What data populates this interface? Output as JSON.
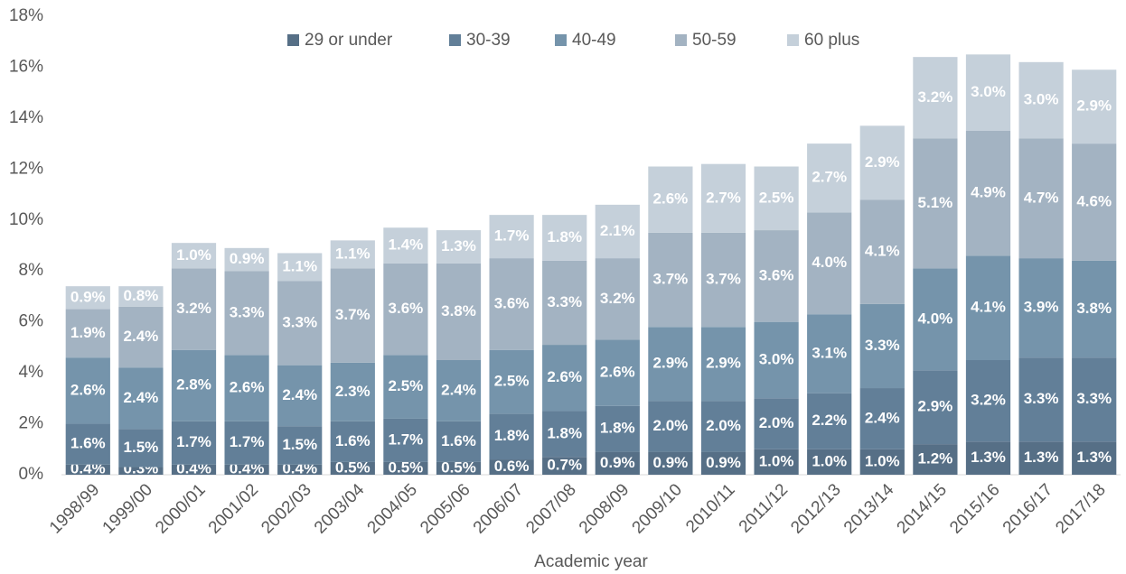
{
  "chart_data": {
    "type": "stacked_bar",
    "x_label": "Academic year",
    "categories": [
      "1998/99",
      "1999/00",
      "2000/01",
      "2001/02",
      "2002/03",
      "2003/04",
      "2004/05",
      "2005/06",
      "2006/07",
      "2007/08",
      "2008/09",
      "2009/10",
      "2010/11",
      "2011/12",
      "2012/13",
      "2013/14",
      "2014/15",
      "2015/16",
      "2016/17",
      "2017/18"
    ],
    "series": [
      {
        "name": "29 or under",
        "color": "#566f86",
        "values": [
          0.4,
          0.3,
          0.4,
          0.4,
          0.4,
          0.5,
          0.5,
          0.5,
          0.6,
          0.7,
          0.9,
          0.9,
          0.9,
          1.0,
          1.0,
          1.0,
          1.2,
          1.3,
          1.3,
          1.3
        ],
        "value_labels": [
          "0.4%",
          "0.3%",
          "0.4%",
          "0.4%",
          "0.4%",
          "0.5%",
          "0.5%",
          "0.5%",
          "0.6%",
          "0.7%",
          "0.9%",
          "0.9%",
          "0.9%",
          "1.0%",
          "1.0%",
          "1.0%",
          "1.2%",
          "1.3%",
          "1.3%",
          "1.3%"
        ]
      },
      {
        "name": "30-39",
        "color": "#627f98",
        "values": [
          1.6,
          1.5,
          1.7,
          1.7,
          1.5,
          1.6,
          1.7,
          1.6,
          1.8,
          1.8,
          1.8,
          2.0,
          2.0,
          2.0,
          2.2,
          2.4,
          2.9,
          3.2,
          3.3,
          3.3
        ],
        "value_labels": [
          "1.6%",
          "1.5%",
          "1.7%",
          "1.7%",
          "1.5%",
          "1.6%",
          "1.7%",
          "1.6%",
          "1.8%",
          "1.8%",
          "1.8%",
          "2.0%",
          "2.0%",
          "2.0%",
          "2.2%",
          "2.4%",
          "2.9%",
          "3.2%",
          "3.3%",
          "3.3%"
        ]
      },
      {
        "name": "40-49",
        "color": "#7594ab",
        "values": [
          2.6,
          2.4,
          2.8,
          2.6,
          2.4,
          2.3,
          2.5,
          2.4,
          2.5,
          2.6,
          2.6,
          2.9,
          2.9,
          3.0,
          3.1,
          3.3,
          4.0,
          4.1,
          3.9,
          3.8
        ],
        "value_labels": [
          "2.6%",
          "2.4%",
          "2.8%",
          "2.6%",
          "2.4%",
          "2.3%",
          "2.5%",
          "2.4%",
          "2.5%",
          "2.6%",
          "2.6%",
          "2.9%",
          "2.9%",
          "3.0%",
          "3.1%",
          "3.3%",
          "4.0%",
          "4.1%",
          "3.9%",
          "3.8%"
        ]
      },
      {
        "name": "50-59",
        "color": "#a3b3c2",
        "values": [
          1.9,
          2.4,
          3.2,
          3.3,
          3.3,
          3.7,
          3.6,
          3.8,
          3.6,
          3.3,
          3.2,
          3.7,
          3.7,
          3.6,
          4.0,
          4.1,
          5.1,
          4.9,
          4.7,
          4.6
        ],
        "value_labels": [
          "1.9%",
          "2.4%",
          "3.2%",
          "3.3%",
          "3.3%",
          "3.7%",
          "3.6%",
          "3.8%",
          "3.6%",
          "3.3%",
          "3.2%",
          "3.7%",
          "3.7%",
          "3.6%",
          "4.0%",
          "4.1%",
          "5.1%",
          "4.9%",
          "4.7%",
          "4.6%"
        ]
      },
      {
        "name": "60 plus",
        "color": "#c5d0da",
        "values": [
          0.9,
          0.8,
          1.0,
          0.9,
          1.1,
          1.1,
          1.4,
          1.3,
          1.7,
          1.8,
          2.1,
          2.6,
          2.7,
          2.5,
          2.7,
          2.9,
          3.2,
          3.0,
          3.0,
          2.9
        ],
        "value_labels": [
          "0.9%",
          "0.8%",
          "1.0%",
          "0.9%",
          "1.1%",
          "1.1%",
          "1.4%",
          "1.3%",
          "1.7%",
          "1.8%",
          "2.1%",
          "2.6%",
          "2.7%",
          "2.5%",
          "2.7%",
          "2.9%",
          "3.2%",
          "3.0%",
          "3.0%",
          "2.9%"
        ]
      }
    ],
    "ylim": [
      0,
      18
    ],
    "yticks": [
      {
        "value": 0,
        "label": "0%"
      },
      {
        "value": 2,
        "label": "2%"
      },
      {
        "value": 4,
        "label": "4%"
      },
      {
        "value": 6,
        "label": "6%"
      },
      {
        "value": 8,
        "label": "8%"
      },
      {
        "value": 10,
        "label": "10%"
      },
      {
        "value": 12,
        "label": "12%"
      },
      {
        "value": 14,
        "label": "14%"
      },
      {
        "value": 16,
        "label": "16%"
      },
      {
        "value": 18,
        "label": "18%"
      }
    ],
    "legend": "top"
  }
}
